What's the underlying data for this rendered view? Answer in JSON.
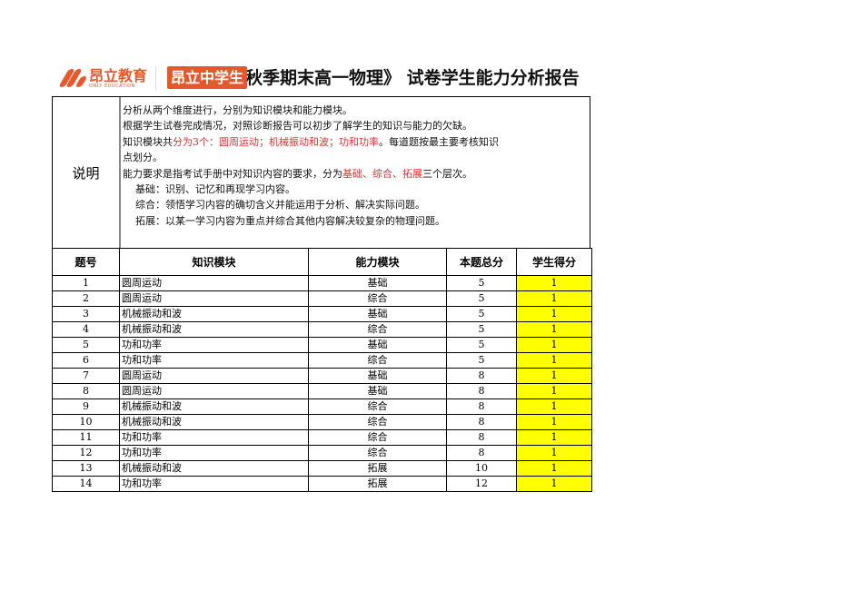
{
  "header": {
    "logo_cn": "昂立教育",
    "logo_en": "ONLY EDUCATION",
    "badge": "昂立中学生",
    "title": "秋季期末高一物理》 试卷学生能力分析报告"
  },
  "description": {
    "label": "说明",
    "line1": "分析从两个维度进行，分别为知识模块和能力模块。",
    "line2": "根据学生试卷完成情况，对照诊断报告可以初步了解学生的知识与能力的欠缺。",
    "line3a": "知识模块共",
    "line3b": "分为3个：圆周运动；机械振动和波；功和功率",
    "line3c": "。每道题按最主要考核知识",
    "line4": "点划分。",
    "line5a": "能力要求是指考试手册中对知识内容的要求，分为",
    "line5b": "基础、综合、拓展",
    "line5c": "三个层次。",
    "line6": "基础：识别、记忆和再现学习内容。",
    "line7": "综合：领悟学习内容的确切含义并能运用于分析、解决实际问题。",
    "line8": "拓展：以某一学习内容为重点并综合其他内容解决较复杂的物理问题。"
  },
  "table": {
    "headers": [
      "题号",
      "知识模块",
      "能力模块",
      "本题总分",
      "学生得分"
    ],
    "rows": [
      [
        "1",
        "圆周运动",
        "基础",
        "5",
        "1"
      ],
      [
        "2",
        "圆周运动",
        "综合",
        "5",
        "1"
      ],
      [
        "3",
        "机械振动和波",
        "基础",
        "5",
        "1"
      ],
      [
        "4",
        "机械振动和波",
        "综合",
        "5",
        "1"
      ],
      [
        "5",
        "功和功率",
        "基础",
        "5",
        "1"
      ],
      [
        "6",
        "功和功率",
        "综合",
        "5",
        "1"
      ],
      [
        "7",
        "圆周运动",
        "基础",
        "8",
        "1"
      ],
      [
        "8",
        "圆周运动",
        "基础",
        "8",
        "1"
      ],
      [
        "9",
        "机械振动和波",
        "综合",
        "8",
        "1"
      ],
      [
        "10",
        "机械振动和波",
        "综合",
        "8",
        "1"
      ],
      [
        "11",
        "功和功率",
        "综合",
        "8",
        "1"
      ],
      [
        "12",
        "功和功率",
        "综合",
        "8",
        "1"
      ],
      [
        "13",
        "机械振动和波",
        "拓展",
        "10",
        "1"
      ],
      [
        "14",
        "功和功率",
        "拓展",
        "12",
        "1"
      ]
    ]
  },
  "colors": {
    "brand": "#e15a2b",
    "highlight": "#ffff00",
    "emphasis": "#e03030"
  }
}
